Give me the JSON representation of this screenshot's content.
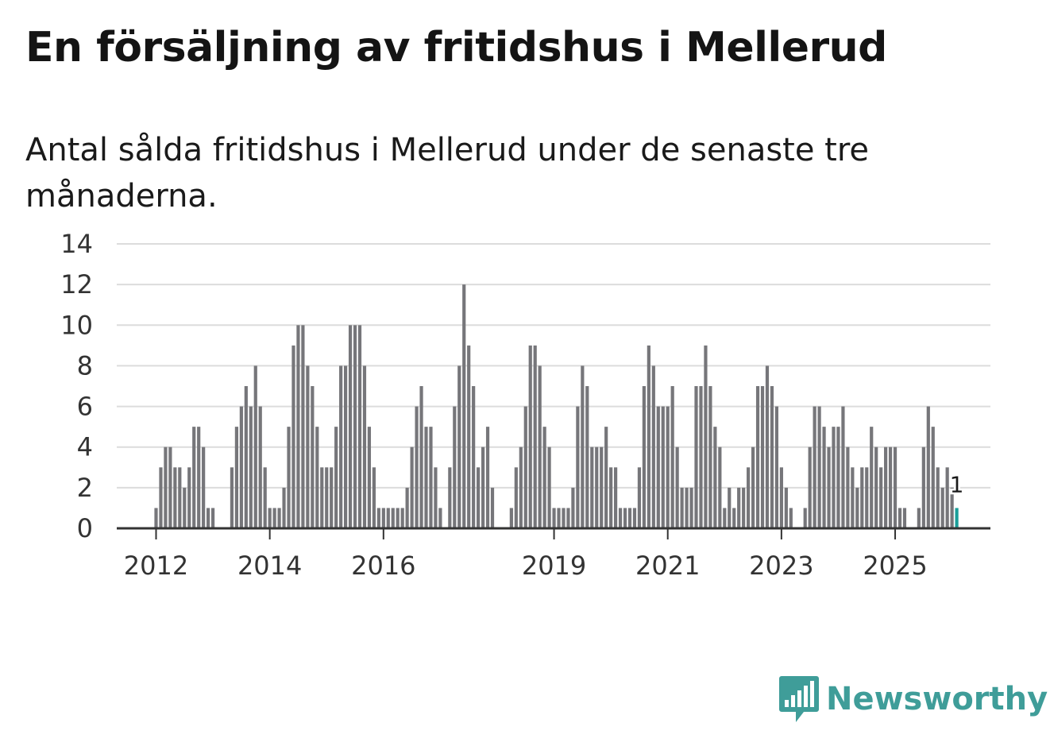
{
  "header": {
    "title": "En försäljning av fritidshus i Mellerud",
    "subtitle": "Antal sålda fritidshus i Mellerud under de senaste tre månaderna."
  },
  "brand": {
    "name": "Newsworthy",
    "color": "#3f9d99"
  },
  "colors": {
    "bar": "#76767a",
    "highlight": "#1a9e99",
    "grid": "#dcdcdc",
    "axis": "#333333"
  },
  "chart_data": {
    "type": "bar",
    "x_start": "2012-01",
    "x_step": "month",
    "xtick_labels": [
      "2012",
      "2014",
      "2016",
      "2019",
      "2021",
      "2023",
      "2025"
    ],
    "ylim": [
      0,
      14
    ],
    "yticks": [
      0,
      2,
      4,
      6,
      8,
      10,
      12,
      14
    ],
    "grid": true,
    "values": [
      1,
      3,
      4,
      4,
      3,
      3,
      2,
      3,
      5,
      5,
      4,
      1,
      1,
      0,
      0,
      0,
      3,
      5,
      6,
      7,
      6,
      8,
      6,
      3,
      1,
      1,
      1,
      2,
      5,
      9,
      10,
      10,
      8,
      7,
      5,
      3,
      3,
      3,
      5,
      8,
      8,
      10,
      10,
      10,
      8,
      5,
      3,
      1,
      1,
      1,
      1,
      1,
      1,
      2,
      4,
      6,
      7,
      5,
      5,
      3,
      1,
      0,
      3,
      6,
      8,
      12,
      9,
      7,
      3,
      4,
      5,
      2,
      0,
      0,
      0,
      1,
      3,
      4,
      6,
      9,
      9,
      8,
      5,
      4,
      1,
      1,
      1,
      1,
      2,
      6,
      8,
      7,
      4,
      4,
      4,
      5,
      3,
      3,
      1,
      1,
      1,
      1,
      3,
      7,
      9,
      8,
      6,
      6,
      6,
      7,
      4,
      2,
      2,
      2,
      7,
      7,
      9,
      7,
      5,
      4,
      1,
      2,
      1,
      2,
      2,
      3,
      4,
      7,
      7,
      8,
      7,
      6,
      3,
      2,
      1,
      0,
      0,
      1,
      4,
      6,
      6,
      5,
      4,
      5,
      5,
      6,
      4,
      3,
      2,
      3,
      3,
      5,
      4,
      3,
      4,
      4,
      4,
      1,
      1,
      0,
      0,
      1,
      4,
      6,
      5,
      3,
      2,
      3,
      2,
      1
    ],
    "highlight_last": true,
    "last_label": "1"
  }
}
